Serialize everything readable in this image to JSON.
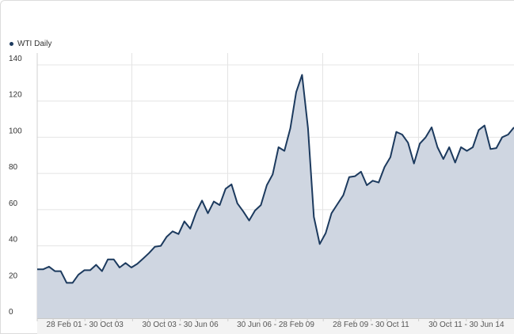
{
  "legend": {
    "label": "WTI Daily",
    "color": "#1c3a5e"
  },
  "chart_data": {
    "type": "area",
    "series": [
      {
        "name": "WTI Daily",
        "color": "#1c3a5e",
        "fill": "#cfd6e1",
        "values": [
          27,
          27,
          28.5,
          26,
          26,
          19.5,
          19.5,
          24,
          26.5,
          26.5,
          29.5,
          26,
          32.5,
          32.5,
          28,
          30.5,
          28,
          30,
          33,
          36,
          39.5,
          40,
          45,
          48,
          46.5,
          53.5,
          49.5,
          58.5,
          65,
          58,
          64.5,
          62.5,
          71.5,
          74,
          63.5,
          59,
          54,
          59.5,
          62.5,
          73.5,
          79.5,
          94.5,
          92.5,
          105,
          125,
          134.5,
          105,
          56,
          41,
          47,
          58,
          63,
          68,
          78,
          78.5,
          81,
          73.5,
          76,
          75,
          83.5,
          89,
          103,
          101.5,
          97,
          85.5,
          96.5,
          100,
          105.5,
          94.5,
          88,
          94.5,
          86,
          94.5,
          92.5,
          94.5,
          104,
          106.5,
          93.5,
          94,
          100,
          101.5,
          105.5
        ]
      }
    ],
    "ylim": [
      0,
      140
    ],
    "yticks": [
      0,
      20,
      40,
      60,
      80,
      100,
      120,
      140
    ],
    "xticklabels": [
      "28 Feb 01 - 30 Oct 03",
      "30 Oct 03 - 30 Jun 06",
      "30 Jun 06 - 28 Feb 09",
      "28 Feb 09 - 30 Oct 11",
      "30 Oct 11 - 30 Jun 14"
    ],
    "grid": true,
    "legend_position": "top-left"
  }
}
